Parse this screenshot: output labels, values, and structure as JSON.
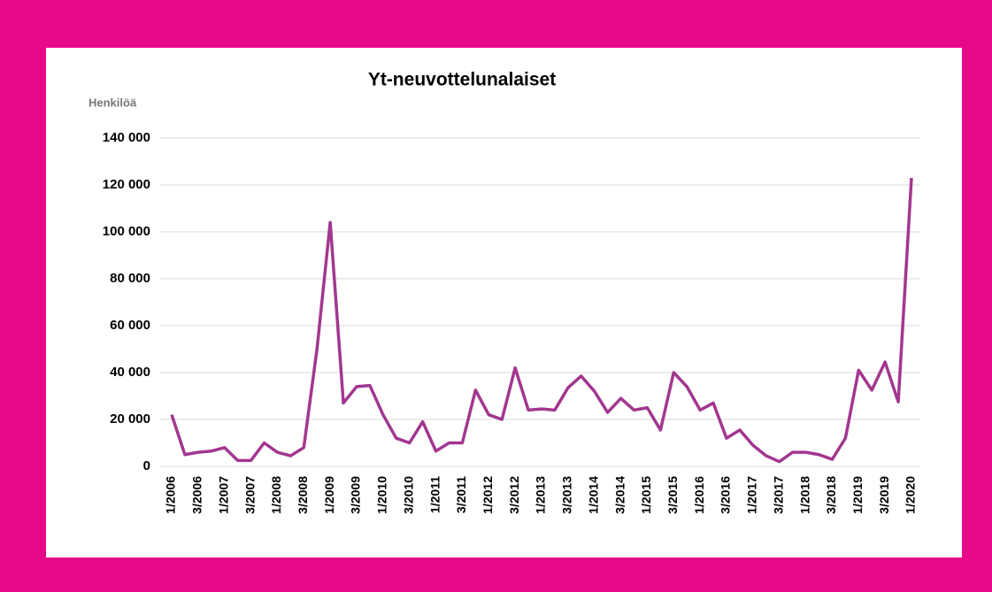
{
  "chart_data": {
    "type": "line",
    "title": "Yt-neuvottelunalaiset",
    "y_axis_label": "Henkilöä",
    "categories": [
      "1/2006",
      null,
      "3/2006",
      null,
      "1/2007",
      null,
      "3/2007",
      null,
      "1/2008",
      null,
      "3/2008",
      null,
      "1/2009",
      null,
      "3/2009",
      null,
      "1/2010",
      null,
      "3/2010",
      null,
      "1/2011",
      null,
      "3/2011",
      null,
      "1/2012",
      null,
      "3/2012",
      null,
      "1/2013",
      null,
      "3/2013",
      null,
      "1/2014",
      null,
      "3/2014",
      null,
      "1/2015",
      null,
      "3/2015",
      null,
      "1/2016",
      null,
      "3/2016",
      null,
      "1/2017",
      null,
      "3/2017",
      null,
      "1/2018",
      null,
      "3/2018",
      null,
      "1/2019",
      null,
      "3/2019",
      null,
      "1/2020"
    ],
    "series": [
      {
        "name": "Yt-neuvottelunalaiset",
        "color": "#a2378f",
        "values": [
          22000,
          5000,
          6000,
          6500,
          8000,
          2500,
          2500,
          10000,
          6000,
          4500,
          8000,
          50000,
          104000,
          27000,
          34000,
          34500,
          22000,
          12000,
          10000,
          19000,
          6500,
          10000,
          10000,
          32500,
          22000,
          20000,
          42000,
          24000,
          24500,
          24000,
          33500,
          38500,
          32000,
          23000,
          29000,
          24000,
          25000,
          15500,
          40000,
          34000,
          24000,
          27000,
          12000,
          15500,
          9000,
          4500,
          2000,
          6000,
          6000,
          5000,
          3000,
          12000,
          41000,
          32500,
          44500,
          27500,
          123000
        ]
      }
    ],
    "ylim": [
      0,
      140000
    ],
    "yticks": [
      0,
      {
        "value": 20000,
        "label": "20 000"
      },
      {
        "value": 40000,
        "label": "40 000"
      },
      {
        "value": 60000,
        "label": "60 000"
      },
      {
        "value": 80000,
        "label": "80 000"
      },
      {
        "value": 100000,
        "label": "100 000"
      },
      {
        "value": 120000,
        "label": "120 000"
      },
      {
        "value": 140000,
        "label": "140 000"
      }
    ],
    "grid": true
  }
}
